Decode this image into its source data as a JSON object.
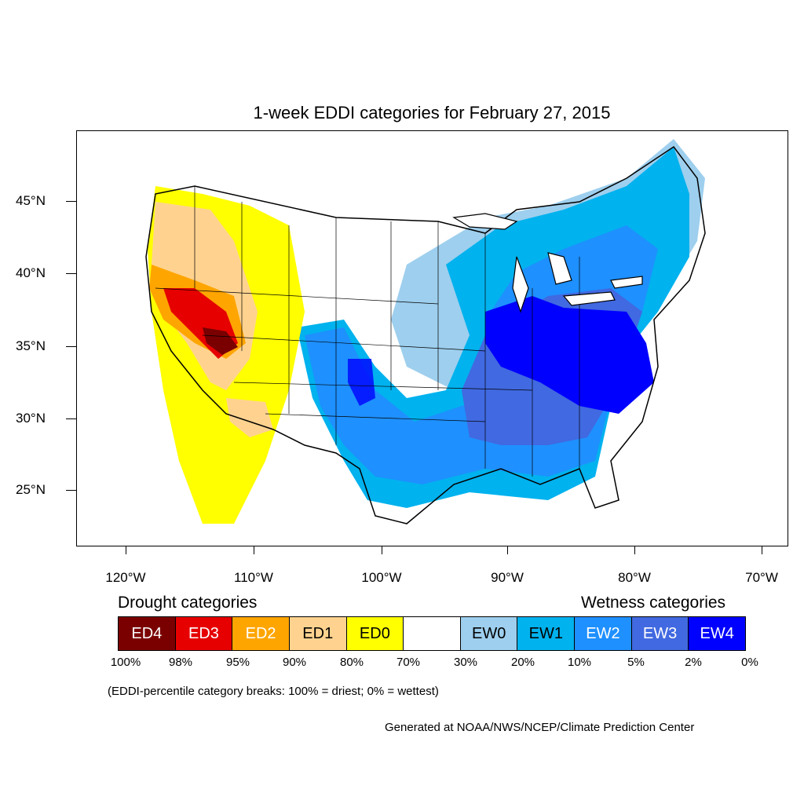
{
  "title": "1-week EDDI categories for February 27, 2015",
  "latitude_labels": [
    "45°N",
    "40°N",
    "35°N",
    "30°N",
    "25°N"
  ],
  "longitude_labels": [
    "120°W",
    "110°W",
    "100°W",
    "90°W",
    "80°W",
    "70°W"
  ],
  "drought_title": "Drought categories",
  "wetness_title": "Wetness categories",
  "legend": [
    {
      "label": "ED4",
      "color": "#7a0000",
      "text_color": "#ffffff"
    },
    {
      "label": "ED3",
      "color": "#e60000",
      "text_color": "#ffffff"
    },
    {
      "label": "ED2",
      "color": "#ffa500",
      "text_color": "#ffffff"
    },
    {
      "label": "ED1",
      "color": "#ffd38f",
      "text_color": "#000000"
    },
    {
      "label": "ED0",
      "color": "#ffff00",
      "text_color": "#000000"
    },
    {
      "label": "",
      "color": "#ffffff",
      "text_color": "#000000"
    },
    {
      "label": "EW0",
      "color": "#9ecfee",
      "text_color": "#000000"
    },
    {
      "label": "EW1",
      "color": "#00b2ee",
      "text_color": "#000000"
    },
    {
      "label": "EW2",
      "color": "#1e90ff",
      "text_color": "#ffffff"
    },
    {
      "label": "EW3",
      "color": "#4169e1",
      "text_color": "#ffffff"
    },
    {
      "label": "EW4",
      "color": "#0000ff",
      "text_color": "#ffffff"
    }
  ],
  "percent_breaks": [
    "100%",
    "98%",
    "95%",
    "90%",
    "80%",
    "70%",
    "30%",
    "20%",
    "10%",
    "5%",
    "2%",
    "0%"
  ],
  "note": "(EDDI-percentile category breaks: 100% = driest; 0% = wettest)",
  "credit": "Generated at NOAA/NWS/NCEP/Climate Prediction Center"
}
